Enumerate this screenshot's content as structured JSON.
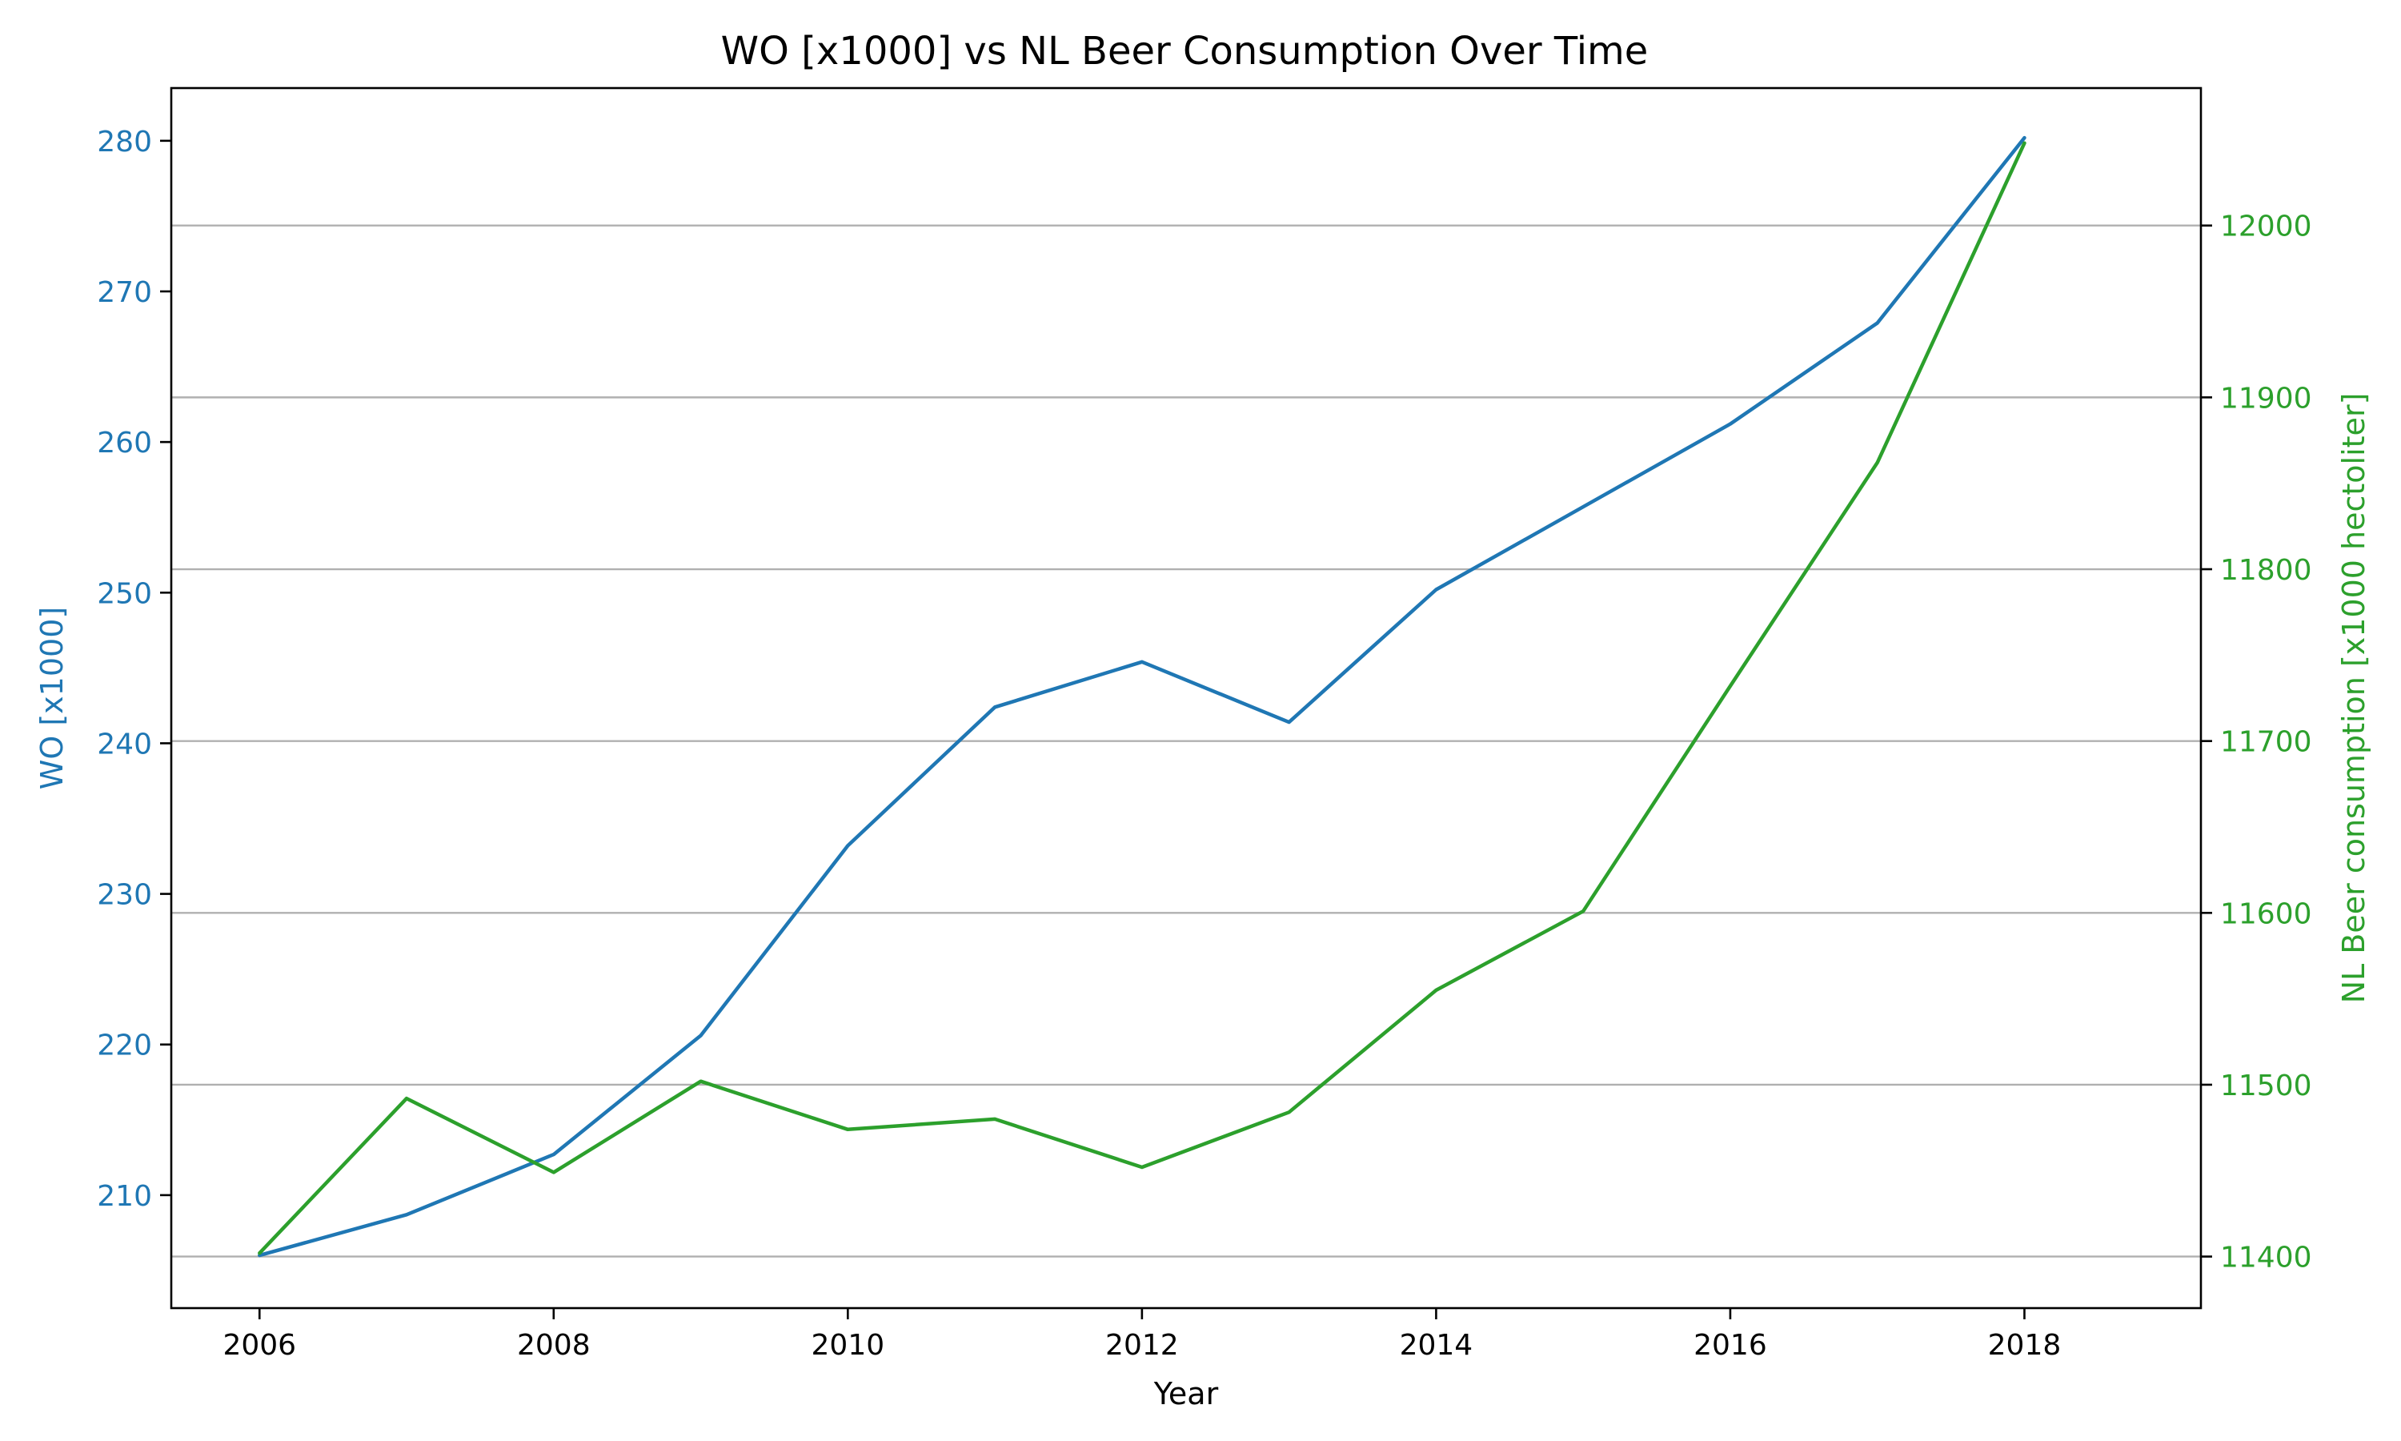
{
  "chart_data": {
    "type": "line",
    "title": "WO [x1000] vs NL Beer Consumption Over Time",
    "xlabel": "Year",
    "ylabel_left": "WO [x1000]",
    "ylabel_right": "NL Beer consumption [x1000 hectoliter]",
    "x": [
      2006,
      2007,
      2008,
      2009,
      2010,
      2011,
      2012,
      2013,
      2014,
      2015,
      2016,
      2017,
      2018
    ],
    "x_ticks": [
      2006,
      2008,
      2010,
      2012,
      2014,
      2016,
      2018
    ],
    "xlim": [
      2005.4,
      2019.2
    ],
    "left_axis": {
      "ylim": [
        202.5,
        283.5
      ],
      "ticks": [
        210,
        220,
        230,
        240,
        250,
        260,
        270,
        280
      ],
      "color": "#1f77b4"
    },
    "right_axis": {
      "ylim": [
        11370,
        12080
      ],
      "ticks": [
        11400,
        11500,
        11600,
        11700,
        11800,
        11900,
        12000
      ],
      "color": "#2ca02c"
    },
    "grid": "horizontal-right-axis",
    "series": [
      {
        "axis": "left",
        "color": "#1f77b4",
        "values": [
          206.0,
          208.7,
          212.7,
          220.6,
          233.2,
          242.4,
          245.4,
          241.4,
          250.2,
          255.7,
          261.2,
          267.9,
          280.2
        ]
      },
      {
        "axis": "right",
        "color": "#2ca02c",
        "values": [
          11402,
          11492,
          11449,
          11502,
          11474,
          11480,
          11452,
          11484,
          11555,
          11601,
          11732,
          11862,
          12048
        ]
      }
    ]
  }
}
